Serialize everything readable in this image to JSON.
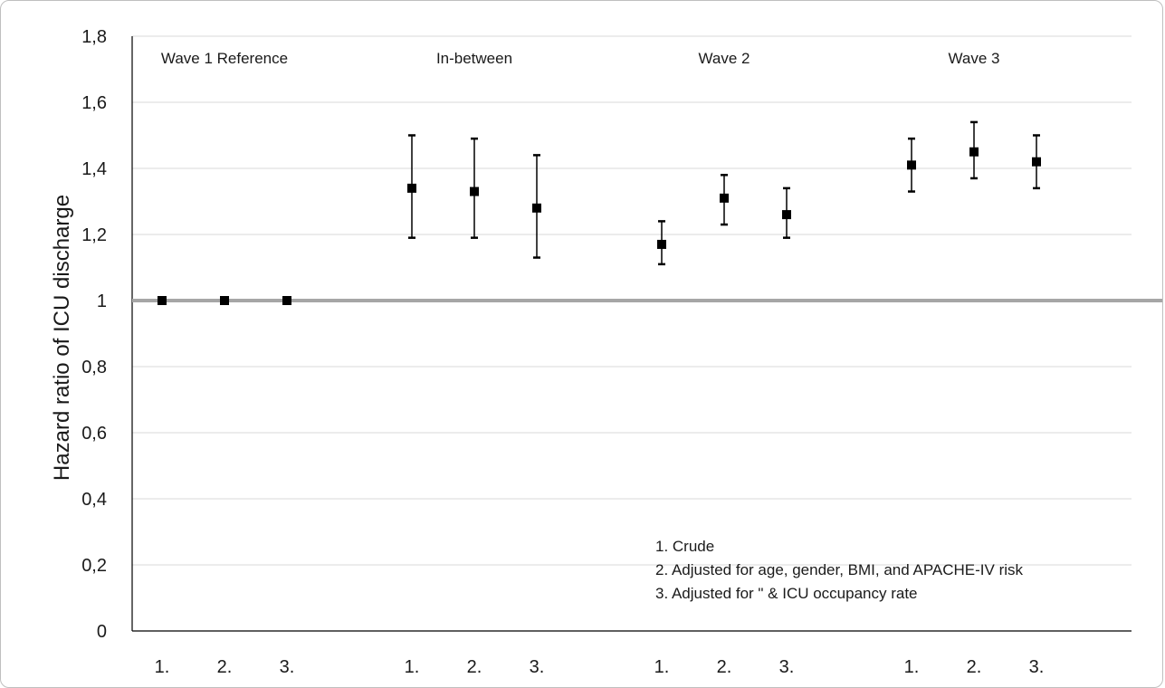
{
  "chart_data": {
    "type": "scatter",
    "ylabel": "Hazard ratio of ICU discharge",
    "xlabel": "",
    "ylim": [
      0,
      1.8
    ],
    "yticks": [
      "0",
      "0,2",
      "0,4",
      "0,6",
      "0,8",
      "1",
      "1,2",
      "1,4",
      "1,6",
      "1,8"
    ],
    "ytick_values": [
      0,
      0.2,
      0.4,
      0.6,
      0.8,
      1.0,
      1.2,
      1.4,
      1.6,
      1.8
    ],
    "grid": true,
    "reference_line": 1.0,
    "groups": [
      {
        "name": "Wave 1 Reference",
        "points": [
          {
            "label": "1.",
            "value": 1.0,
            "lower": 1.0,
            "upper": 1.0
          },
          {
            "label": "2.",
            "value": 1.0,
            "lower": 1.0,
            "upper": 1.0
          },
          {
            "label": "3.",
            "value": 1.0,
            "lower": 1.0,
            "upper": 1.0
          }
        ]
      },
      {
        "name": "In-between",
        "points": [
          {
            "label": "1.",
            "value": 1.34,
            "lower": 1.19,
            "upper": 1.5
          },
          {
            "label": "2.",
            "value": 1.33,
            "lower": 1.19,
            "upper": 1.49
          },
          {
            "label": "3.",
            "value": 1.28,
            "lower": 1.13,
            "upper": 1.44
          }
        ]
      },
      {
        "name": "Wave 2",
        "points": [
          {
            "label": "1.",
            "value": 1.17,
            "lower": 1.11,
            "upper": 1.24
          },
          {
            "label": "2.",
            "value": 1.31,
            "lower": 1.23,
            "upper": 1.38
          },
          {
            "label": "3.",
            "value": 1.26,
            "lower": 1.19,
            "upper": 1.34
          }
        ]
      },
      {
        "name": "Wave 3",
        "points": [
          {
            "label": "1.",
            "value": 1.41,
            "lower": 1.33,
            "upper": 1.49
          },
          {
            "label": "2.",
            "value": 1.45,
            "lower": 1.37,
            "upper": 1.54
          },
          {
            "label": "3.",
            "value": 1.42,
            "lower": 1.34,
            "upper": 1.5
          }
        ]
      }
    ],
    "legend": {
      "placement": "bottom-right",
      "items": [
        "1. Crude",
        "2. Adjusted for age, gender, BMI, and APACHE-IV risk",
        "3. Adjusted for \" & ICU occupancy rate"
      ]
    },
    "colors": {
      "marker": "#000000",
      "grid": "#d9d9d9",
      "reference": "#a6a6a6",
      "axis": "#000000"
    }
  }
}
